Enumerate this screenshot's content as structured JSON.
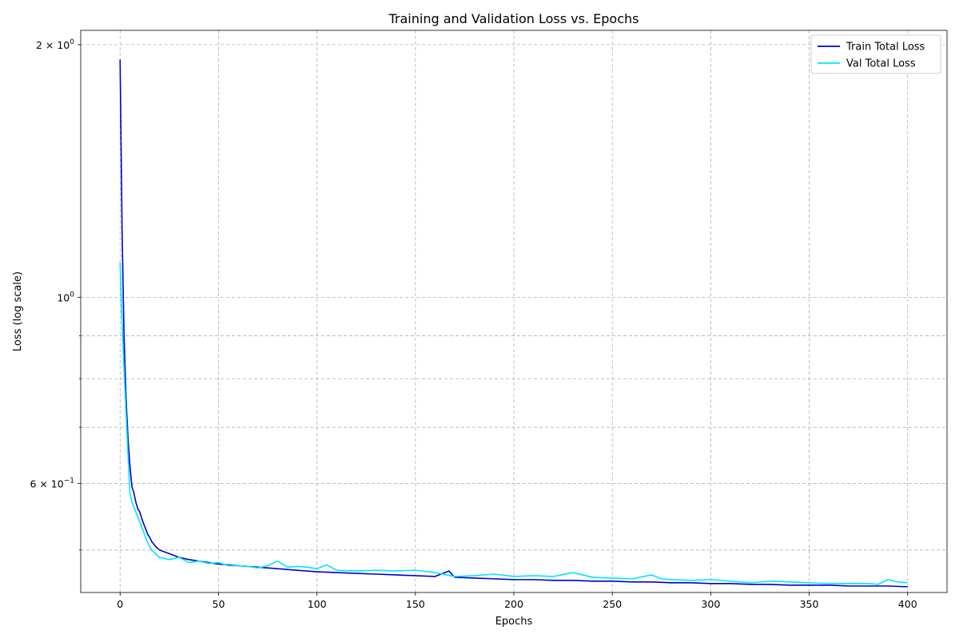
{
  "chart_data": {
    "type": "line",
    "title": "Training and Validation Loss vs. Epochs",
    "xlabel": "Epochs",
    "ylabel": "Loss (log scale)",
    "yscale": "log",
    "xlim": [
      -20,
      420
    ],
    "ylim": [
      0.445,
      2.08
    ],
    "grid": true,
    "legend_position": "top-right",
    "x_ticks": [
      {
        "value": 0,
        "label": "0"
      },
      {
        "value": 50,
        "label": "50"
      },
      {
        "value": 100,
        "label": "100"
      },
      {
        "value": 150,
        "label": "150"
      },
      {
        "value": 200,
        "label": "200"
      },
      {
        "value": 250,
        "label": "250"
      },
      {
        "value": 300,
        "label": "300"
      },
      {
        "value": 350,
        "label": "350"
      },
      {
        "value": 400,
        "label": "400"
      }
    ],
    "y_major_ticks": [
      {
        "value": 2.0,
        "base": "2 × 10",
        "exp": "0"
      },
      {
        "value": 1.0,
        "base": "10",
        "exp": "0"
      },
      {
        "value": 0.6,
        "base": "6 × 10",
        "exp": "−1"
      }
    ],
    "y_minor_ticks": [
      0.5,
      0.7,
      0.8,
      0.9
    ],
    "series": [
      {
        "name": "Train Total Loss",
        "color": "#0000cd",
        "points": [
          [
            0,
            1.92
          ],
          [
            1,
            1.2
          ],
          [
            2,
            0.9
          ],
          [
            3,
            0.76
          ],
          [
            4,
            0.68
          ],
          [
            5,
            0.63
          ],
          [
            6,
            0.595
          ],
          [
            7,
            0.585
          ],
          [
            8,
            0.57
          ],
          [
            9,
            0.56
          ],
          [
            10,
            0.555
          ],
          [
            11,
            0.545
          ],
          [
            12,
            0.537
          ],
          [
            13,
            0.53
          ],
          [
            14,
            0.522
          ],
          [
            15,
            0.518
          ],
          [
            16,
            0.512
          ],
          [
            18,
            0.505
          ],
          [
            20,
            0.5
          ],
          [
            22,
            0.498
          ],
          [
            25,
            0.495
          ],
          [
            28,
            0.492
          ],
          [
            30,
            0.49
          ],
          [
            35,
            0.487
          ],
          [
            40,
            0.485
          ],
          [
            45,
            0.483
          ],
          [
            50,
            0.481
          ],
          [
            60,
            0.479
          ],
          [
            70,
            0.477
          ],
          [
            80,
            0.475
          ],
          [
            90,
            0.473
          ],
          [
            100,
            0.471
          ],
          [
            110,
            0.47
          ],
          [
            120,
            0.469
          ],
          [
            130,
            0.468
          ],
          [
            140,
            0.467
          ],
          [
            150,
            0.466
          ],
          [
            160,
            0.465
          ],
          [
            167,
            0.472
          ],
          [
            170,
            0.464
          ],
          [
            180,
            0.463
          ],
          [
            190,
            0.462
          ],
          [
            200,
            0.461
          ],
          [
            210,
            0.461
          ],
          [
            220,
            0.46
          ],
          [
            230,
            0.46
          ],
          [
            240,
            0.459
          ],
          [
            250,
            0.459
          ],
          [
            260,
            0.458
          ],
          [
            270,
            0.458
          ],
          [
            280,
            0.457
          ],
          [
            290,
            0.457
          ],
          [
            300,
            0.456
          ],
          [
            310,
            0.456
          ],
          [
            320,
            0.455
          ],
          [
            330,
            0.455
          ],
          [
            340,
            0.454
          ],
          [
            350,
            0.454
          ],
          [
            360,
            0.454
          ],
          [
            370,
            0.453
          ],
          [
            380,
            0.453
          ],
          [
            390,
            0.453
          ],
          [
            400,
            0.452
          ]
        ]
      },
      {
        "name": "Val Total Loss",
        "color": "#00e5ff",
        "points": [
          [
            0,
            1.1
          ],
          [
            1,
            0.93
          ],
          [
            2,
            0.82
          ],
          [
            3,
            0.73
          ],
          [
            4,
            0.65
          ],
          [
            5,
            0.585
          ],
          [
            6,
            0.57
          ],
          [
            8,
            0.555
          ],
          [
            10,
            0.54
          ],
          [
            12,
            0.525
          ],
          [
            14,
            0.51
          ],
          [
            16,
            0.5
          ],
          [
            18,
            0.495
          ],
          [
            20,
            0.49
          ],
          [
            25,
            0.487
          ],
          [
            30,
            0.49
          ],
          [
            35,
            0.483
          ],
          [
            40,
            0.485
          ],
          [
            45,
            0.482
          ],
          [
            50,
            0.483
          ],
          [
            55,
            0.479
          ],
          [
            60,
            0.479
          ],
          [
            65,
            0.478
          ],
          [
            70,
            0.476
          ],
          [
            75,
            0.479
          ],
          [
            80,
            0.485
          ],
          [
            85,
            0.477
          ],
          [
            90,
            0.478
          ],
          [
            95,
            0.477
          ],
          [
            100,
            0.475
          ],
          [
            105,
            0.48
          ],
          [
            110,
            0.473
          ],
          [
            120,
            0.472
          ],
          [
            130,
            0.473
          ],
          [
            140,
            0.472
          ],
          [
            150,
            0.473
          ],
          [
            160,
            0.47
          ],
          [
            170,
            0.465
          ],
          [
            180,
            0.466
          ],
          [
            190,
            0.468
          ],
          [
            200,
            0.465
          ],
          [
            210,
            0.466
          ],
          [
            220,
            0.465
          ],
          [
            230,
            0.47
          ],
          [
            240,
            0.464
          ],
          [
            250,
            0.463
          ],
          [
            260,
            0.462
          ],
          [
            270,
            0.467
          ],
          [
            275,
            0.462
          ],
          [
            280,
            0.461
          ],
          [
            290,
            0.46
          ],
          [
            300,
            0.461
          ],
          [
            310,
            0.459
          ],
          [
            320,
            0.457
          ],
          [
            330,
            0.459
          ],
          [
            340,
            0.458
          ],
          [
            350,
            0.457
          ],
          [
            360,
            0.456
          ],
          [
            370,
            0.456
          ],
          [
            380,
            0.456
          ],
          [
            385,
            0.455
          ],
          [
            390,
            0.461
          ],
          [
            395,
            0.458
          ],
          [
            400,
            0.457
          ]
        ]
      }
    ]
  }
}
